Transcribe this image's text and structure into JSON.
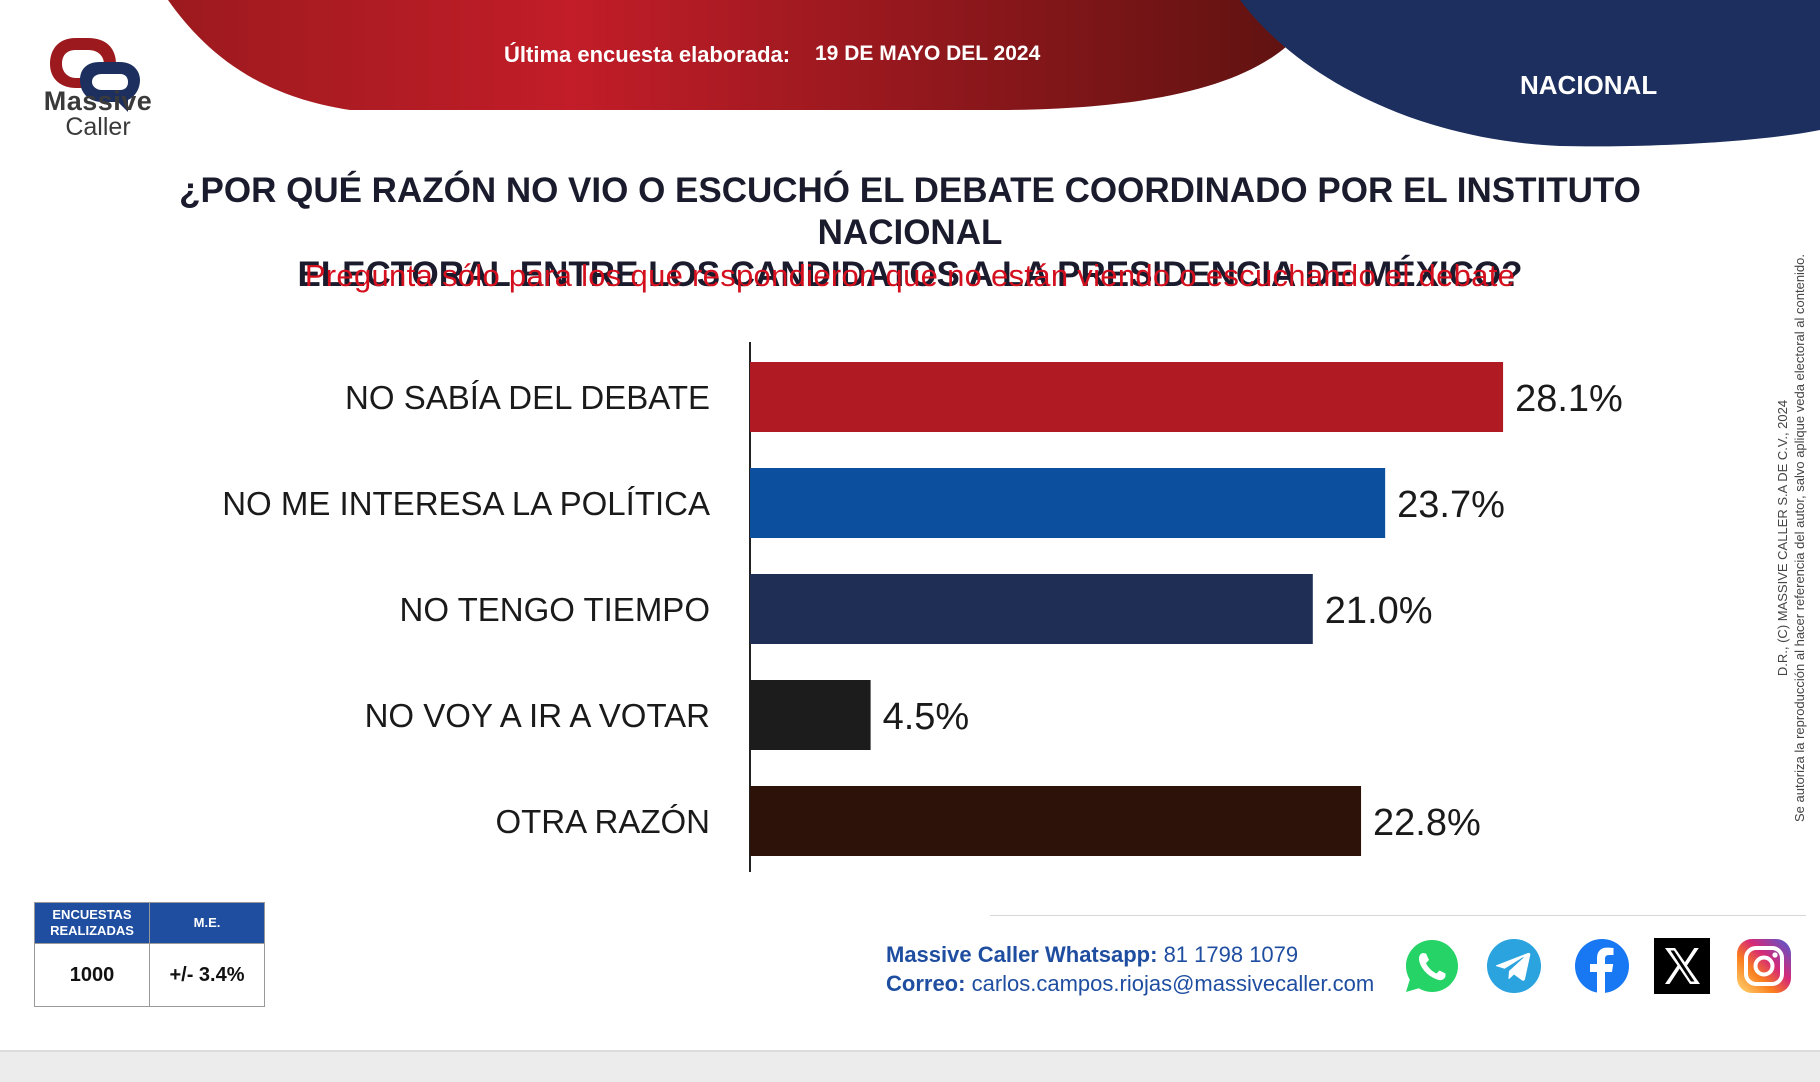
{
  "brand": {
    "name_line1": "Massive",
    "name_line2": "Caller"
  },
  "header": {
    "survey_label": "Última encuesta elaborada:",
    "survey_date": "19 DE MAYO DEL 2024",
    "scope": "NACIONAL"
  },
  "colors": {
    "header_red": "#b01a22",
    "header_navy": "#1d2f5e",
    "bar_red": "#b01a22",
    "bar_blue": "#0b4f9e",
    "bar_navy": "#1f2e55",
    "bar_black": "#1c1c1c",
    "bar_brown": "#2c1208"
  },
  "question": {
    "line1": "¿POR QUÉ RAZÓN NO VIO O ESCUCHÓ EL DEBATE COORDINADO POR EL INSTITUTO NACIONAL",
    "line2": "ELECTORAL ENTRE LOS CANDIDATOS A LA PRESIDENCIA DE MÉXICO?",
    "note": "Pregunta sólo para los que respondieron que no están viendo o escuchando el debate"
  },
  "chart_data": {
    "type": "bar",
    "orientation": "horizontal",
    "title": "¿POR QUÉ RAZÓN NO VIO O ESCUCHÓ EL DEBATE COORDINADO POR EL INSTITUTO NACIONAL ELECTORAL ENTRE LOS CANDIDATOS A LA PRESIDENCIA DE MÉXICO?",
    "subtitle": "Pregunta sólo para los que respondieron que no están viendo o escuchando el debate",
    "categories": [
      "NO SABÍA DEL DEBATE",
      "NO ME INTERESA LA POLÍTICA",
      "NO TENGO TIEMPO",
      "NO VOY A IR A VOTAR",
      "OTRA RAZÓN"
    ],
    "values": [
      28.1,
      23.7,
      21.0,
      4.5,
      22.8
    ],
    "value_labels": [
      "28.1%",
      "23.7%",
      "21.0%",
      "4.5%",
      "22.8%"
    ],
    "bar_colors": [
      "#b01a22",
      "#0b4f9e",
      "#1f2e55",
      "#1c1c1c",
      "#2c1208"
    ],
    "xlim": [
      0,
      30
    ],
    "grid": false,
    "legend": "none"
  },
  "stats": {
    "surveys_header_l1": "ENCUESTAS",
    "surveys_header_l2": "REALIZADAS",
    "surveys_value": "1000",
    "me_header": "M.E.",
    "me_value": "+/- 3.4%"
  },
  "contact": {
    "whatsapp_label": "Massive Caller Whatsapp:",
    "whatsapp_number": "81 1798 1079",
    "email_label": "Correo:",
    "email": "carlos.campos.riojas@massivecaller.com"
  },
  "copyright": {
    "line1": "D.R., (C) MASSIVE CALLER S.A DE C.V., 2024",
    "line2": "Se autoriza la reproducción al hacer referencia del autor, salvo aplique veda electoral al contenido."
  },
  "social": [
    {
      "icon": "whatsapp-icon",
      "color": "#25d366"
    },
    {
      "icon": "telegram-icon",
      "color": "#2aa3df"
    },
    {
      "icon": "facebook-icon",
      "color": "#1877f2"
    },
    {
      "icon": "x-icon",
      "color": "#000000"
    },
    {
      "icon": "instagram-icon",
      "color": "#d62976"
    }
  ]
}
